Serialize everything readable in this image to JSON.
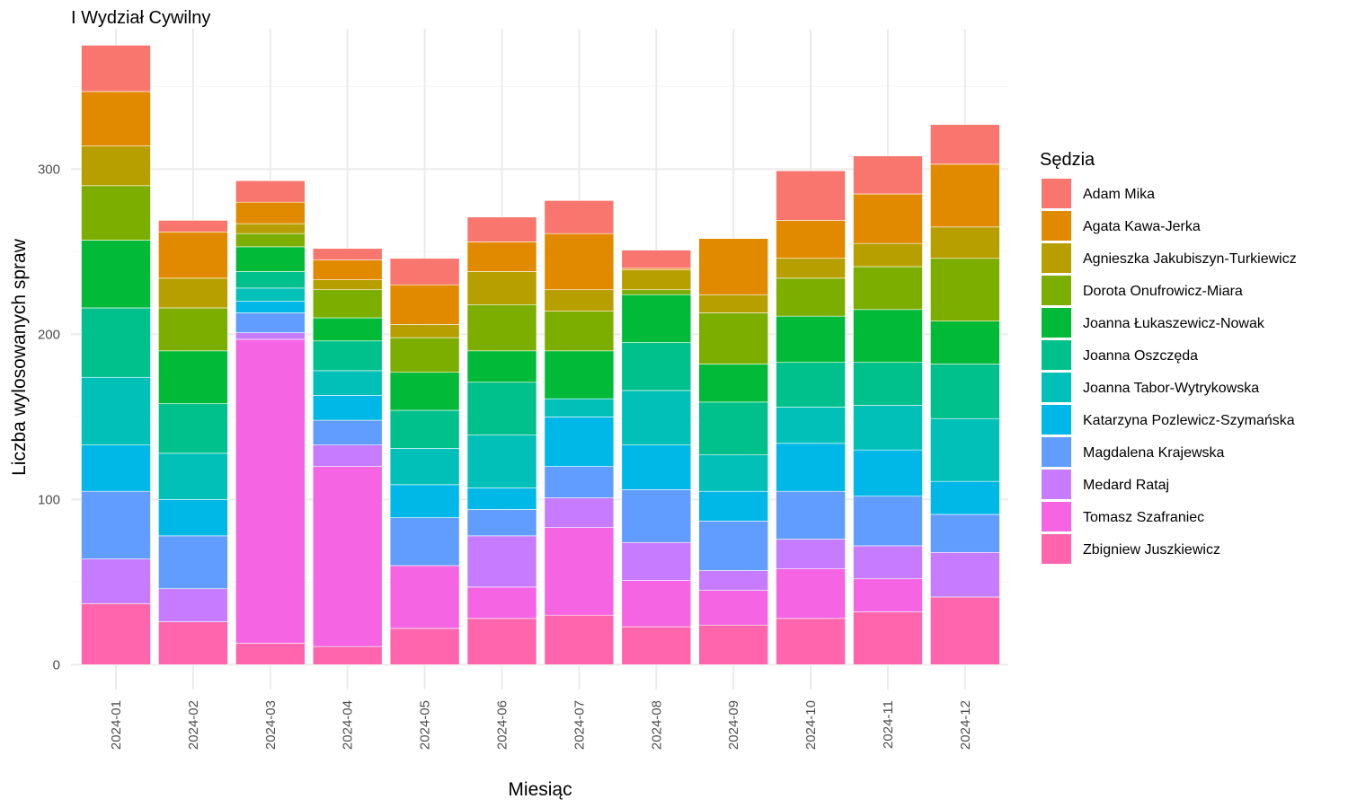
{
  "chart_data": {
    "type": "bar",
    "stacked": true,
    "title": "I Wydział Cywilny",
    "xlabel": "Miesiąc",
    "ylabel": "Liczba wylosowanych spraw",
    "ylim": [
      -15,
      385
    ],
    "yticks": [
      0,
      100,
      200,
      300
    ],
    "grid": true,
    "legend_title": "Sędzia",
    "legend_position": "right",
    "categories": [
      "2024-01",
      "2024-02",
      "2024-03",
      "2024-04",
      "2024-05",
      "2024-06",
      "2024-07",
      "2024-08",
      "2024-09",
      "2024-10",
      "2024-11",
      "2024-12"
    ],
    "series": [
      {
        "name": "Zbigniew Juszkiewicz",
        "color": "#FF65AC",
        "values": [
          37,
          26,
          13,
          11,
          22,
          28,
          30,
          23,
          24,
          28,
          32,
          41
        ]
      },
      {
        "name": "Tomasz Szafraniec",
        "color": "#F564E3",
        "values": [
          0,
          0,
          184,
          109,
          38,
          19,
          53,
          28,
          21,
          30,
          20,
          0
        ]
      },
      {
        "name": "Medard Rataj",
        "color": "#C77CFF",
        "values": [
          27,
          20,
          4,
          13,
          0,
          31,
          18,
          23,
          12,
          18,
          20,
          27
        ]
      },
      {
        "name": "Magdalena Krajewska",
        "color": "#619CFF",
        "values": [
          41,
          32,
          12,
          15,
          29,
          16,
          19,
          32,
          30,
          29,
          30,
          23
        ]
      },
      {
        "name": "Katarzyna Pozlewicz-Szymańska",
        "color": "#00B8E7",
        "values": [
          28,
          22,
          7,
          15,
          20,
          13,
          30,
          27,
          18,
          29,
          28,
          20
        ]
      },
      {
        "name": "Joanna Tabor-Wytrykowska",
        "color": "#00C0B8",
        "values": [
          41,
          28,
          8,
          15,
          22,
          32,
          11,
          33,
          22,
          22,
          27,
          38
        ]
      },
      {
        "name": "Joanna Oszczęda",
        "color": "#00C08B",
        "values": [
          42,
          30,
          10,
          18,
          23,
          32,
          0,
          29,
          32,
          27,
          26,
          33
        ]
      },
      {
        "name": "Joanna Łukaszewicz-Nowak",
        "color": "#00BA38",
        "values": [
          41,
          32,
          15,
          14,
          23,
          19,
          29,
          29,
          23,
          28,
          32,
          26
        ]
      },
      {
        "name": "Dorota Onufrowicz-Miara",
        "color": "#7CAE00",
        "values": [
          33,
          26,
          8,
          17,
          21,
          28,
          24,
          3,
          31,
          23,
          26,
          38
        ]
      },
      {
        "name": "Agnieszka Jakubiszyn-Turkiewicz",
        "color": "#B79F00",
        "values": [
          24,
          18,
          6,
          6,
          8,
          20,
          13,
          12,
          11,
          12,
          14,
          19
        ]
      },
      {
        "name": "Agata Kawa-Jerka",
        "color": "#E18A00",
        "values": [
          33,
          28,
          13,
          12,
          24,
          18,
          34,
          1,
          34,
          23,
          30,
          38
        ]
      },
      {
        "name": "Adam Mika",
        "color": "#F8766D",
        "values": [
          28,
          7,
          13,
          7,
          16,
          15,
          20,
          11,
          0,
          30,
          23,
          24
        ]
      }
    ]
  }
}
